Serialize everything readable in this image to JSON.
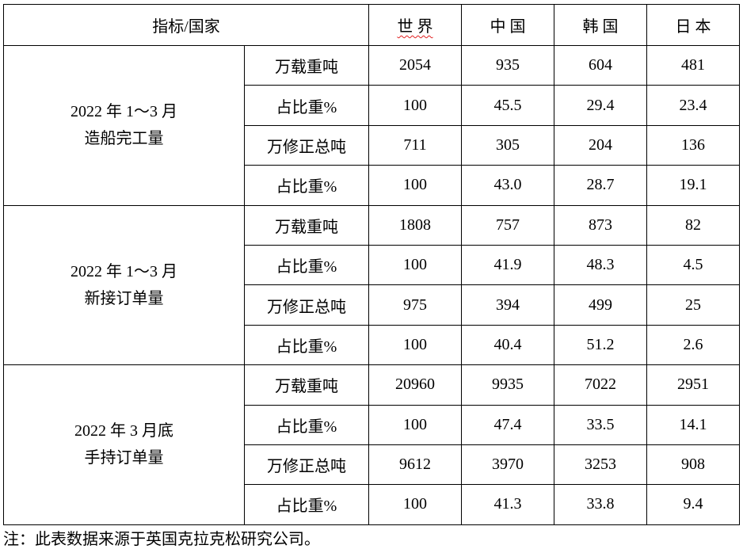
{
  "table": {
    "header": {
      "indicator": "指标/国家",
      "countries": [
        "世 界",
        "中 国",
        "韩 国",
        "日 本"
      ]
    },
    "groups": [
      {
        "label_line1": "2022 年 1～3 月",
        "label_line2": "造船完工量",
        "rows": [
          {
            "unit": "万载重吨",
            "values": [
              "2054",
              "935",
              "604",
              "481"
            ]
          },
          {
            "unit": "占比重%",
            "values": [
              "100",
              "45.5",
              "29.4",
              "23.4"
            ]
          },
          {
            "unit": "万修正总吨",
            "values": [
              "711",
              "305",
              "204",
              "136"
            ]
          },
          {
            "unit": "占比重%",
            "values": [
              "100",
              "43.0",
              "28.7",
              "19.1"
            ]
          }
        ]
      },
      {
        "label_line1": "2022 年 1～3 月",
        "label_line2": "新接订单量",
        "rows": [
          {
            "unit": "万载重吨",
            "values": [
              "1808",
              "757",
              "873",
              "82"
            ]
          },
          {
            "unit": "占比重%",
            "values": [
              "100",
              "41.9",
              "48.3",
              "4.5"
            ]
          },
          {
            "unit": "万修正总吨",
            "values": [
              "975",
              "394",
              "499",
              "25"
            ]
          },
          {
            "unit": "占比重%",
            "values": [
              "100",
              "40.4",
              "51.2",
              "2.6"
            ]
          }
        ]
      },
      {
        "label_line1": "2022 年 3 月底",
        "label_line2": "手持订单量",
        "rows": [
          {
            "unit": "万载重吨",
            "values": [
              "20960",
              "9935",
              "7022",
              "2951"
            ]
          },
          {
            "unit": "占比重%",
            "values": [
              "100",
              "47.4",
              "33.5",
              "14.1"
            ]
          },
          {
            "unit": "万修正总吨",
            "values": [
              "9612",
              "3970",
              "3253",
              "908"
            ]
          },
          {
            "unit": "占比重%",
            "values": [
              "100",
              "41.3",
              "33.8",
              "9.4"
            ]
          }
        ]
      }
    ]
  },
  "note": "注：此表数据来源于英国克拉克松研究公司。"
}
